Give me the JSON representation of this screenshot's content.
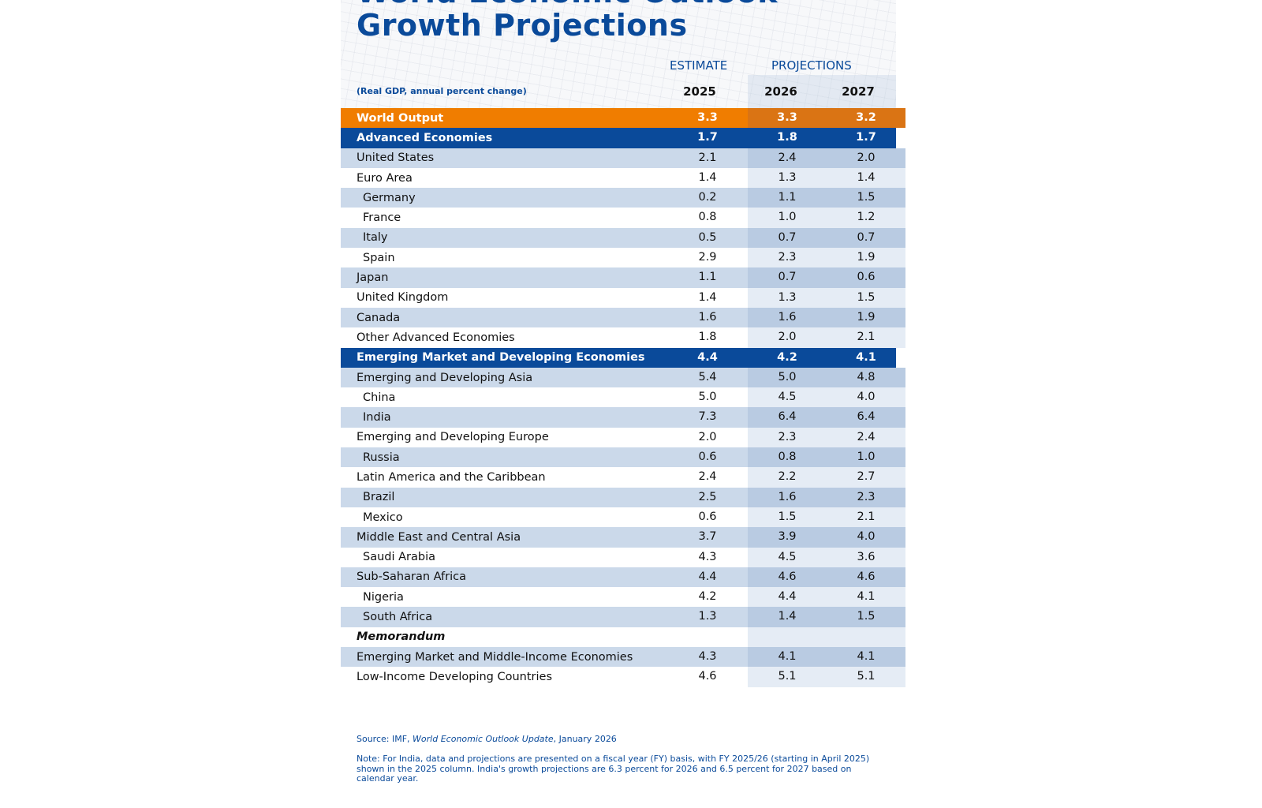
{
  "title": {
    "line1": "World Economic Outlook",
    "line2": "Growth Projections"
  },
  "header": {
    "estimate": "ESTIMATE",
    "projections": "PROJECTIONS",
    "subtitle": "(Real GDP, annual percent change)",
    "years": [
      "2025",
      "2026",
      "2027"
    ]
  },
  "colors": {
    "orange": "#f07d00",
    "navy": "#0a4a9a",
    "light_row": "#cbd9ea"
  },
  "rows": [
    {
      "label": "World Output",
      "values": [
        "3.3",
        "3.3",
        "3.2"
      ],
      "style": "orange"
    },
    {
      "label": "Advanced Economies",
      "values": [
        "1.7",
        "1.8",
        "1.7"
      ],
      "style": "navy"
    },
    {
      "label": "United States",
      "values": [
        "2.1",
        "2.4",
        "2.0"
      ]
    },
    {
      "label": "Euro Area",
      "values": [
        "1.4",
        "1.3",
        "1.4"
      ]
    },
    {
      "label": "Germany",
      "values": [
        "0.2",
        "1.1",
        "1.5"
      ],
      "indent": true
    },
    {
      "label": "France",
      "values": [
        "0.8",
        "1.0",
        "1.2"
      ],
      "indent": true
    },
    {
      "label": "Italy",
      "values": [
        "0.5",
        "0.7",
        "0.7"
      ],
      "indent": true
    },
    {
      "label": "Spain",
      "values": [
        "2.9",
        "2.3",
        "1.9"
      ],
      "indent": true
    },
    {
      "label": "Japan",
      "values": [
        "1.1",
        "0.7",
        "0.6"
      ]
    },
    {
      "label": "United Kingdom",
      "values": [
        "1.4",
        "1.3",
        "1.5"
      ]
    },
    {
      "label": "Canada",
      "values": [
        "1.6",
        "1.6",
        "1.9"
      ]
    },
    {
      "label": "Other Advanced Economies",
      "values": [
        "1.8",
        "2.0",
        "2.1"
      ]
    },
    {
      "label": "Emerging Market and Developing Economies",
      "values": [
        "4.4",
        "4.2",
        "4.1"
      ],
      "style": "navy"
    },
    {
      "label": "Emerging and Developing Asia",
      "values": [
        "5.4",
        "5.0",
        "4.8"
      ]
    },
    {
      "label": "China",
      "values": [
        "5.0",
        "4.5",
        "4.0"
      ],
      "indent": true
    },
    {
      "label": "India",
      "values": [
        "7.3",
        "6.4",
        "6.4"
      ],
      "indent": true
    },
    {
      "label": "Emerging and Developing Europe",
      "values": [
        "2.0",
        "2.3",
        "2.4"
      ]
    },
    {
      "label": "Russia",
      "values": [
        "0.6",
        "0.8",
        "1.0"
      ],
      "indent": true
    },
    {
      "label": "Latin America and the Caribbean",
      "values": [
        "2.4",
        "2.2",
        "2.7"
      ]
    },
    {
      "label": "Brazil",
      "values": [
        "2.5",
        "1.6",
        "2.3"
      ],
      "indent": true
    },
    {
      "label": "Mexico",
      "values": [
        "0.6",
        "1.5",
        "2.1"
      ],
      "indent": true
    },
    {
      "label": "Middle East and Central Asia",
      "values": [
        "3.7",
        "3.9",
        "4.0"
      ]
    },
    {
      "label": "Saudi Arabia",
      "values": [
        "4.3",
        "4.5",
        "3.6"
      ],
      "indent": true
    },
    {
      "label": "Sub-Saharan Africa",
      "values": [
        "4.4",
        "4.6",
        "4.6"
      ]
    },
    {
      "label": "Nigeria",
      "values": [
        "4.2",
        "4.4",
        "4.1"
      ],
      "indent": true
    },
    {
      "label": "South Africa",
      "values": [
        "1.3",
        "1.4",
        "1.5"
      ],
      "indent": true
    },
    {
      "label": "Memorandum",
      "values": [
        "",
        "",
        ""
      ],
      "style": "memo"
    },
    {
      "label": "Emerging Market and Middle-Income Economies",
      "values": [
        "4.3",
        "4.1",
        "4.1"
      ]
    },
    {
      "label": "Low-Income Developing Countries",
      "values": [
        "4.6",
        "5.1",
        "5.1"
      ]
    }
  ],
  "footer": {
    "source_prefix": "Source: IMF, ",
    "source_title": "World Economic Outlook Update",
    "source_suffix": ", January 2026",
    "note": "Note: For India, data and projections are presented on a fiscal year (FY) basis, with FY 2025/26 (starting in April 2025) shown in the 2025 column. India's growth projections are 6.3 percent for 2026 and 6.5 percent for 2027 based on calendar year."
  }
}
